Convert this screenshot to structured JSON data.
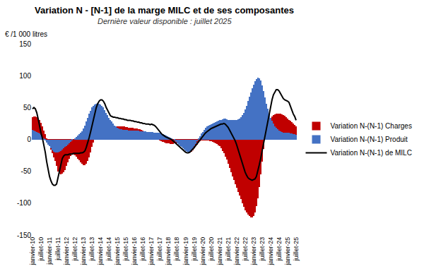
{
  "chart_data": {
    "type": "bar",
    "title": "Variation N - [N-1] de la marge MILC et de ses composantes",
    "subtitle": "Dernière valeur disponible : juillet 2025",
    "y_label": "€ /1 000 litres",
    "categories": [
      "janvier-10",
      null,
      null,
      null,
      null,
      null,
      "juillet-10",
      null,
      null,
      null,
      null,
      null,
      "janvier-11",
      null,
      null,
      null,
      null,
      null,
      "juillet-11",
      null,
      null,
      null,
      null,
      null,
      "janvier-12",
      null,
      null,
      null,
      null,
      null,
      "juillet-12",
      null,
      null,
      null,
      null,
      null,
      "janvier-13",
      null,
      null,
      null,
      null,
      null,
      "juillet-13",
      null,
      null,
      null,
      null,
      null,
      "janvier-14",
      null,
      null,
      null,
      null,
      null,
      "juillet-14",
      null,
      null,
      null,
      null,
      null,
      "janvier-15",
      null,
      null,
      null,
      null,
      null,
      "juillet-15",
      null,
      null,
      null,
      null,
      null,
      "janvier-16",
      null,
      null,
      null,
      null,
      null,
      "juillet-16",
      null,
      null,
      null,
      null,
      null,
      "janvier-17",
      null,
      null,
      null,
      null,
      null,
      "juillet-17",
      null,
      null,
      null,
      null,
      null,
      "janvier-18",
      null,
      null,
      null,
      null,
      null,
      "juillet-18",
      null,
      null,
      null,
      null,
      null,
      "janvier-19",
      null,
      null,
      null,
      null,
      null,
      "juillet-19",
      null,
      null,
      null,
      null,
      null,
      "janvier-20",
      null,
      null,
      null,
      null,
      null,
      "juillet-20",
      null,
      null,
      null,
      null,
      null,
      "janvier-21",
      null,
      null,
      null,
      null,
      null,
      "juillet-21",
      null,
      null,
      null,
      null,
      null,
      "janvier-22",
      null,
      null,
      null,
      null,
      null,
      "juillet-22",
      null,
      null,
      null,
      null,
      null,
      "janvier-23",
      null,
      null,
      null,
      null,
      null,
      "juillet-23",
      null,
      null,
      null,
      null,
      null,
      "janvier-24",
      null,
      null,
      null,
      null,
      null,
      "juillet-24",
      null,
      null,
      null,
      null,
      null,
      "janvier-25",
      null,
      null,
      null,
      null,
      null,
      "juillet-25"
    ],
    "series": [
      {
        "name": "Variation N-(N-1) Charges",
        "type": "bar",
        "color": "#c00000",
        "values": [
          35,
          36,
          36,
          35,
          33,
          30,
          26,
          20,
          14,
          8,
          2,
          -4,
          -10,
          -16,
          -22,
          -28,
          -34,
          -42,
          -50,
          -54,
          -55,
          -54,
          -52,
          -48,
          -42,
          -36,
          -30,
          -26,
          -24,
          -24,
          -25,
          -27,
          -30,
          -33,
          -36,
          -38,
          -40,
          -40,
          -38,
          -34,
          -28,
          -20,
          -12,
          -5,
          0,
          2,
          3,
          4,
          5,
          6,
          7,
          8,
          9,
          10,
          12,
          14,
          16,
          18,
          19,
          20,
          20,
          21,
          21,
          20,
          20,
          20,
          19,
          19,
          18,
          18,
          18,
          18,
          17,
          17,
          17,
          16,
          16,
          15,
          14,
          13,
          12,
          11,
          10,
          10,
          9,
          8,
          7,
          5,
          3,
          1,
          -1,
          -3,
          -4,
          -5,
          -6,
          -6,
          -6,
          -7,
          -7,
          -7,
          -6,
          -6,
          -5,
          -5,
          -6,
          -8,
          -10,
          -13,
          -16,
          -18,
          -20,
          -20,
          -19,
          -17,
          -14,
          -11,
          -8,
          -5,
          -3,
          -2,
          -1,
          -1,
          -1,
          -2,
          -2,
          -3,
          -3,
          -4,
          -5,
          -6,
          -7,
          -9,
          -11,
          -14,
          -18,
          -22,
          -27,
          -32,
          -38,
          -45,
          -52,
          -58,
          -64,
          -70,
          -76,
          -82,
          -88,
          -94,
          -100,
          -106,
          -111,
          -115,
          -118,
          -120,
          -122,
          -122,
          -120,
          -115,
          -105,
          -92,
          -75,
          -55,
          -35,
          -15,
          0,
          10,
          20,
          28,
          33,
          36,
          38,
          39,
          40,
          40,
          40,
          40,
          39,
          38,
          37,
          35,
          33,
          31,
          29,
          27,
          25,
          23,
          20
        ]
      },
      {
        "name": "Variation N-(N-1) Produit",
        "type": "bar",
        "color": "#4472c4",
        "values": [
          15,
          14,
          13,
          12,
          11,
          9,
          7,
          4,
          1,
          -2,
          -5,
          -8,
          -11,
          -14,
          -17,
          -19,
          -20,
          -20,
          -20,
          -19,
          -18,
          -16,
          -14,
          -12,
          -10,
          -8,
          -6,
          -4,
          -2,
          0,
          2,
          4,
          6,
          8,
          10,
          13,
          17,
          22,
          28,
          34,
          40,
          45,
          50,
          53,
          55,
          56,
          57,
          56,
          55,
          53,
          50,
          46,
          42,
          38,
          34,
          31,
          28,
          25,
          22,
          20,
          18,
          17,
          16,
          16,
          15,
          15,
          15,
          15,
          14,
          14,
          14,
          14,
          14,
          14,
          14,
          14,
          13,
          13,
          13,
          13,
          13,
          12,
          12,
          12,
          12,
          12,
          11,
          11,
          11,
          10,
          10,
          9,
          8,
          7,
          6,
          5,
          4,
          3,
          2,
          0,
          -2,
          -4,
          -6,
          -8,
          -10,
          -12,
          -14,
          -16,
          -18,
          -19,
          -20,
          -19,
          -17,
          -14,
          -11,
          -7,
          -3,
          1,
          5,
          9,
          12,
          15,
          18,
          20,
          22,
          23,
          24,
          25,
          26,
          27,
          28,
          29,
          30,
          31,
          32,
          33,
          33,
          32,
          31,
          30,
          30,
          30,
          30,
          30,
          31,
          32,
          33,
          35,
          38,
          42,
          47,
          53,
          60,
          67,
          74,
          80,
          86,
          91,
          95,
          97,
          96,
          92,
          85,
          76,
          66,
          56,
          48,
          40,
          34,
          29,
          25,
          21,
          18,
          16,
          14,
          13,
          12,
          11,
          10,
          10,
          10,
          10,
          9,
          9,
          8,
          8,
          7
        ]
      },
      {
        "name": "Variation N-(N-1) de MILC",
        "type": "line",
        "color": "#000000",
        "values": [
          48,
          50,
          48,
          42,
          32,
          20,
          10,
          2,
          -8,
          -20,
          -35,
          -48,
          -58,
          -65,
          -70,
          -72,
          -72,
          -70,
          -60,
          -48,
          -38,
          -30,
          -26,
          -24,
          -24,
          -24,
          -23,
          -23,
          -23,
          -22,
          -22,
          -22,
          -22,
          -22,
          -21,
          -21,
          -20,
          -18,
          -12,
          -5,
          3,
          12,
          22,
          32,
          42,
          50,
          56,
          60,
          62,
          62,
          60,
          56,
          50,
          45,
          40,
          37,
          36,
          35,
          35,
          34,
          34,
          33,
          33,
          32,
          32,
          31,
          31,
          30,
          30,
          30,
          29,
          29,
          28,
          28,
          27,
          27,
          26,
          26,
          25,
          25,
          24,
          24,
          24,
          23,
          24,
          23,
          22,
          20,
          17,
          14,
          11,
          9,
          7,
          5,
          4,
          3,
          2,
          1,
          0,
          -2,
          -4,
          -6,
          -8,
          -10,
          -12,
          -15,
          -17,
          -19,
          -20,
          -21,
          -21,
          -20,
          -18,
          -16,
          -13,
          -10,
          -7,
          -4,
          -1,
          2,
          5,
          8,
          10,
          12,
          14,
          16,
          17,
          18,
          19,
          20,
          21,
          22,
          23,
          24,
          24,
          25,
          24,
          22,
          19,
          15,
          11,
          6,
          2,
          -2,
          -8,
          -15,
          -22,
          -30,
          -38,
          -45,
          -51,
          -56,
          -60,
          -62,
          -63,
          -64,
          -63,
          -62,
          -58,
          -50,
          -40,
          -30,
          -18,
          -8,
          2,
          15,
          28,
          40,
          52,
          62,
          70,
          75,
          78,
          78,
          76,
          72,
          68,
          64,
          62,
          61,
          60,
          58,
          52,
          45,
          40,
          36,
          30
        ]
      }
    ],
    "ylim": [
      -150,
      150
    ],
    "yticks": [
      -150,
      -100,
      -50,
      0,
      50,
      100,
      150
    ],
    "stacked": false,
    "grid": false,
    "legend": "right"
  }
}
